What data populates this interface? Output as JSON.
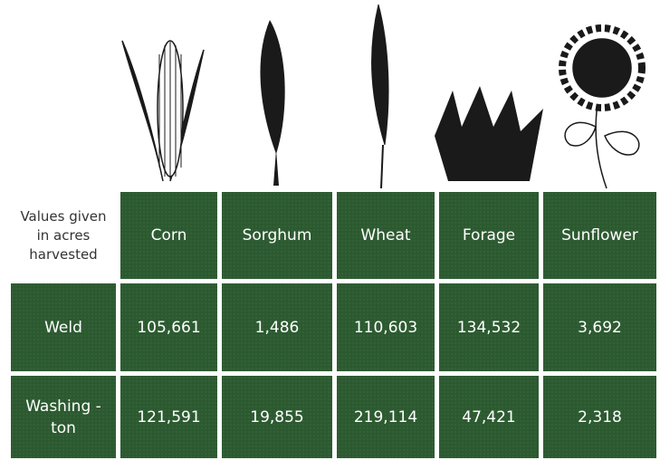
{
  "table": {
    "header": [
      "Values given in acres harvested",
      "Corn",
      "Sorghum",
      "Wheat",
      "Forage",
      "Sunflower"
    ],
    "rows": [
      [
        "Weld",
        "105,661",
        "1,486",
        "110,603",
        "134,532",
        "3,692"
      ],
      [
        "Washing -ton",
        "121,591",
        "19,855",
        "219,114",
        "47,421",
        "2,318"
      ]
    ]
  }
}
